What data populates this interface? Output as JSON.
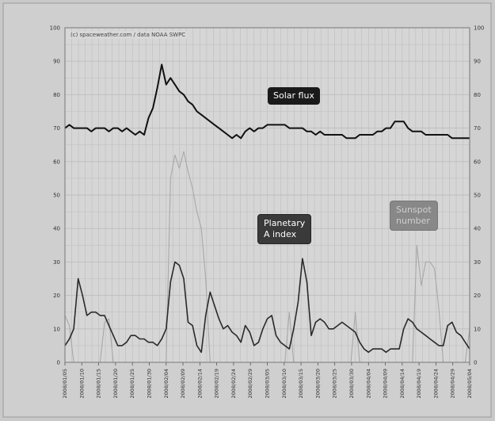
{
  "copyright": "(c) spaceweather.com / data NOAA SWPC",
  "labels": {
    "solar_flux": "Solar flux",
    "planetary": "Planetary\nA index",
    "sunspot": "Sunspot\nnumber"
  },
  "colors": {
    "solar_flux": "#111111",
    "planetary": "#2a2a2a",
    "sunspot": "#a8a8a8",
    "grid": "#bdbdbd",
    "plot_bg": "#d6d6d6"
  },
  "chart_data": {
    "type": "line",
    "ylim": [
      0,
      100
    ],
    "yticks": [
      0,
      10,
      20,
      30,
      40,
      50,
      60,
      70,
      80,
      90,
      100
    ],
    "grid": true,
    "x_tick_labels": [
      "2008/01/05",
      "2008/01/10",
      "2008/01/15",
      "2008/01/20",
      "2008/01/25",
      "2008/01/30",
      "2008/02/04",
      "2008/02/09",
      "2008/02/14",
      "2008/02/19",
      "2008/02/24",
      "2008/02/29",
      "2008/03/05",
      "2008/03/10",
      "2008/03/15",
      "2008/03/20",
      "2008/03/25",
      "2008/03/30",
      "2008/04/04",
      "2008/04/09",
      "2008/04/14",
      "2008/04/19",
      "2008/04/24",
      "2008/04/29",
      "2008/05/04"
    ],
    "series": [
      {
        "name": "Solar flux",
        "values": [
          70,
          71,
          70,
          70,
          70,
          70,
          69,
          70,
          70,
          70,
          69,
          70,
          70,
          69,
          70,
          69,
          68,
          69,
          68,
          73,
          76,
          82,
          89,
          83,
          85,
          83,
          81,
          80,
          78,
          77,
          75,
          74,
          73,
          72,
          71,
          70,
          69,
          68,
          67,
          68,
          67,
          69,
          70,
          69,
          70,
          70,
          71,
          71,
          71,
          71,
          71,
          70,
          70,
          70,
          70,
          69,
          69,
          68,
          69,
          68,
          68,
          68,
          68,
          68,
          67,
          67,
          67,
          68,
          68,
          68,
          68,
          69,
          69,
          70,
          70,
          72,
          72,
          72,
          70,
          69,
          69,
          69,
          68,
          68,
          68,
          68,
          68,
          68,
          67,
          67,
          67,
          67,
          67
        ]
      },
      {
        "name": "Planetary A index",
        "values": [
          5,
          7,
          10,
          25,
          20,
          14,
          15,
          15,
          14,
          14,
          11,
          8,
          5,
          5,
          6,
          8,
          8,
          7,
          7,
          6,
          6,
          5,
          7,
          10,
          24,
          30,
          29,
          25,
          12,
          11,
          5,
          3,
          14,
          21,
          17,
          13,
          10,
          11,
          9,
          8,
          6,
          11,
          9,
          5,
          6,
          10,
          13,
          14,
          8,
          6,
          5,
          4,
          10,
          18,
          31,
          24,
          8,
          12,
          13,
          12,
          10,
          10,
          11,
          12,
          11,
          10,
          9,
          6,
          4,
          3,
          4,
          4,
          4,
          3,
          4,
          4,
          4,
          10,
          13,
          12,
          10,
          9,
          8,
          7,
          6,
          5,
          5,
          11,
          12,
          9,
          8,
          6,
          4
        ]
      },
      {
        "name": "Sunspot number",
        "values": [
          14,
          11,
          0,
          0,
          0,
          0,
          0,
          0,
          0,
          12,
          13,
          0,
          0,
          0,
          0,
          0,
          0,
          0,
          0,
          0,
          0,
          0,
          0,
          0,
          55,
          62,
          58,
          63,
          57,
          52,
          45,
          40,
          25,
          0,
          0,
          0,
          0,
          0,
          0,
          0,
          0,
          0,
          0,
          0,
          0,
          0,
          0,
          0,
          0,
          0,
          0,
          15,
          0,
          0,
          0,
          0,
          0,
          0,
          0,
          0,
          0,
          0,
          0,
          0,
          0,
          0,
          15,
          0,
          0,
          0,
          0,
          0,
          0,
          0,
          0,
          0,
          0,
          0,
          0,
          0,
          35,
          23,
          30,
          30,
          28,
          16,
          0,
          0,
          0,
          0,
          0,
          0,
          10
        ]
      }
    ]
  }
}
